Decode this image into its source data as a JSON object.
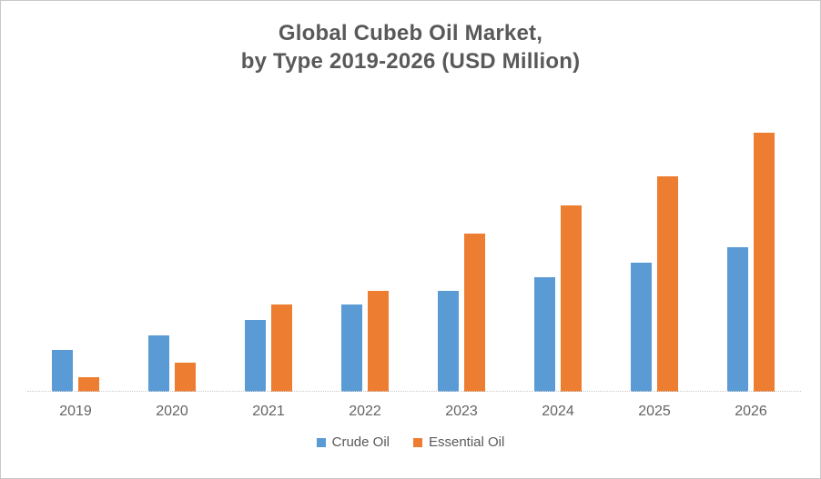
{
  "title": {
    "line1": "Global Cubeb Oil Market,",
    "line2": "by Type 2019-2026 (USD Million)"
  },
  "colors": {
    "crude_blue": "#5B9BD5",
    "essential_orange": "#ED7D31",
    "title_text": "#595959",
    "axis_text": "#646464",
    "axis_line": "#C9C9C9",
    "frame_border": "#C8C8C8"
  },
  "legend": {
    "items": [
      {
        "label": "Crude Oil",
        "color": "#5B9BD5"
      },
      {
        "label": "Essential Oil",
        "color": "#ED7D31"
      }
    ]
  },
  "chart_data": {
    "type": "bar",
    "title": "Global Cubeb Oil Market, by Type 2019-2026 (USD Million)",
    "xlabel": "",
    "ylabel": "",
    "categories": [
      "2019",
      "2020",
      "2021",
      "2022",
      "2023",
      "2024",
      "2025",
      "2026"
    ],
    "series": [
      {
        "name": "Crude Oil",
        "color": "#5B9BD5",
        "values": [
          46,
          62,
          79,
          96,
          111,
          126,
          142,
          159
        ]
      },
      {
        "name": "Essential Oil",
        "color": "#ED7D31",
        "values": [
          16,
          32,
          96,
          111,
          174,
          205,
          237,
          285
        ]
      }
    ],
    "ylim": [
      0,
      320
    ],
    "y_axis_visible": false,
    "gridlines": false,
    "legend_position": "bottom"
  }
}
